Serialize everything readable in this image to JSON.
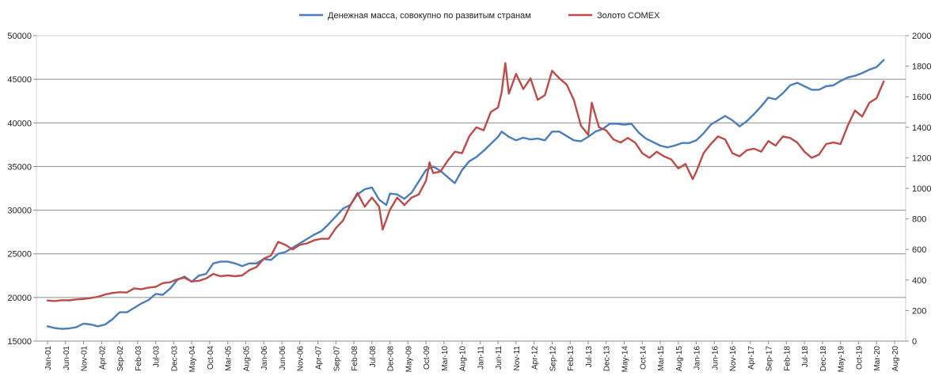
{
  "chart_data": {
    "type": "line",
    "legend_position": "top",
    "grid": true,
    "y_left": {
      "min": 15000,
      "max": 50000,
      "step": 5000,
      "ticks": [
        "15000",
        "20000",
        "25000",
        "30000",
        "35000",
        "40000",
        "45000",
        "50000"
      ]
    },
    "y_right": {
      "min": 0,
      "max": 2000,
      "step": 200,
      "ticks": [
        "0",
        "200",
        "400",
        "600",
        "800",
        "1000",
        "1200",
        "1400",
        "1600",
        "1800",
        "2000"
      ]
    },
    "x_ticks": [
      "Jan-01",
      "Jun-01",
      "Nov-01",
      "Apr-02",
      "Sep-02",
      "Feb-03",
      "Jul-03",
      "Dec-03",
      "May-04",
      "Oct-04",
      "Mar-05",
      "Aug-05",
      "Jan-06",
      "Jun-06",
      "Nov-06",
      "Apr-07",
      "Sep-07",
      "Feb-08",
      "Jul-08",
      "Dec-08",
      "May-09",
      "Oct-09",
      "Mar-10",
      "Aug-10",
      "Jan-11",
      "Jun-11",
      "Nov-11",
      "Apr-12",
      "Sep-12",
      "Feb-13",
      "Jul-13",
      "Dec-13",
      "May-14",
      "Oct-14",
      "Mar-15",
      "Aug-15",
      "Jan-16",
      "Jun-16",
      "Nov-16",
      "Apr-17",
      "Sep-17",
      "Feb-18",
      "Jul-18",
      "Dec-18",
      "May-19",
      "Oct-19",
      "Mar-20",
      "Aug-20"
    ],
    "series": [
      {
        "name": "Денежная  масса, совокупно по развитым странам",
        "axis": "left",
        "color": "#4a7ebb",
        "points": [
          [
            "Jan-01",
            16700
          ],
          [
            "Mar-01",
            16500
          ],
          [
            "May-01",
            16400
          ],
          [
            "Jul-01",
            16450
          ],
          [
            "Sep-01",
            16600
          ],
          [
            "Nov-01",
            17000
          ],
          [
            "Jan-02",
            16900
          ],
          [
            "Mar-02",
            16700
          ],
          [
            "May-02",
            16900
          ],
          [
            "Jul-02",
            17500
          ],
          [
            "Sep-02",
            18300
          ],
          [
            "Nov-02",
            18300
          ],
          [
            "Jan-03",
            18800
          ],
          [
            "Mar-03",
            19300
          ],
          [
            "May-03",
            19700
          ],
          [
            "Jul-03",
            20400
          ],
          [
            "Sep-03",
            20300
          ],
          [
            "Nov-03",
            21000
          ],
          [
            "Jan-04",
            22000
          ],
          [
            "Mar-04",
            22400
          ],
          [
            "May-04",
            21800
          ],
          [
            "Jul-04",
            22500
          ],
          [
            "Sep-04",
            22700
          ],
          [
            "Nov-04",
            23900
          ],
          [
            "Jan-05",
            24100
          ],
          [
            "Mar-05",
            24100
          ],
          [
            "May-05",
            23900
          ],
          [
            "Jul-05",
            23600
          ],
          [
            "Sep-05",
            23900
          ],
          [
            "Nov-05",
            23900
          ],
          [
            "Jan-06",
            24400
          ],
          [
            "Mar-06",
            24300
          ],
          [
            "May-06",
            25000
          ],
          [
            "Jul-06",
            25200
          ],
          [
            "Sep-06",
            25700
          ],
          [
            "Nov-06",
            26200
          ],
          [
            "Jan-07",
            26700
          ],
          [
            "Mar-07",
            27200
          ],
          [
            "May-07",
            27600
          ],
          [
            "Jul-07",
            28400
          ],
          [
            "Sep-07",
            29300
          ],
          [
            "Nov-07",
            30200
          ],
          [
            "Jan-08",
            30600
          ],
          [
            "Mar-08",
            31800
          ],
          [
            "May-08",
            32400
          ],
          [
            "Jul-08",
            32600
          ],
          [
            "Sep-08",
            31200
          ],
          [
            "Nov-08",
            30600
          ],
          [
            "Dec-08",
            31900
          ],
          [
            "Feb-09",
            31800
          ],
          [
            "Apr-09",
            31300
          ],
          [
            "Jun-09",
            32000
          ],
          [
            "Aug-09",
            33300
          ],
          [
            "Oct-09",
            34600
          ],
          [
            "Dec-09",
            35000
          ],
          [
            "Feb-10",
            34500
          ],
          [
            "Apr-10",
            33800
          ],
          [
            "Jun-10",
            33100
          ],
          [
            "Aug-10",
            34600
          ],
          [
            "Oct-10",
            35600
          ],
          [
            "Dec-10",
            36100
          ],
          [
            "Feb-11",
            36800
          ],
          [
            "Apr-11",
            37600
          ],
          [
            "Jun-11",
            38400
          ],
          [
            "Jul-11",
            39000
          ],
          [
            "Sep-11",
            38400
          ],
          [
            "Nov-11",
            38000
          ],
          [
            "Jan-12",
            38300
          ],
          [
            "Mar-12",
            38100
          ],
          [
            "May-12",
            38200
          ],
          [
            "Jul-12",
            38000
          ],
          [
            "Sep-12",
            39000
          ],
          [
            "Nov-12",
            39000
          ],
          [
            "Jan-13",
            38500
          ],
          [
            "Mar-13",
            38000
          ],
          [
            "May-13",
            37900
          ],
          [
            "Jul-13",
            38400
          ],
          [
            "Sep-13",
            39000
          ],
          [
            "Nov-13",
            39300
          ],
          [
            "Jan-14",
            39900
          ],
          [
            "Mar-14",
            39900
          ],
          [
            "May-14",
            39800
          ],
          [
            "Jul-14",
            39900
          ],
          [
            "Sep-14",
            38900
          ],
          [
            "Nov-14",
            38200
          ],
          [
            "Jan-15",
            37800
          ],
          [
            "Mar-15",
            37400
          ],
          [
            "May-15",
            37200
          ],
          [
            "Jul-15",
            37400
          ],
          [
            "Sep-15",
            37700
          ],
          [
            "Nov-15",
            37700
          ],
          [
            "Jan-16",
            38000
          ],
          [
            "Mar-16",
            38800
          ],
          [
            "May-16",
            39800
          ],
          [
            "Jul-16",
            40300
          ],
          [
            "Sep-16",
            40800
          ],
          [
            "Nov-16",
            40300
          ],
          [
            "Jan-17",
            39600
          ],
          [
            "Mar-17",
            40200
          ],
          [
            "May-17",
            41000
          ],
          [
            "Jul-17",
            41900
          ],
          [
            "Sep-17",
            42900
          ],
          [
            "Nov-17",
            42700
          ],
          [
            "Jan-18",
            43400
          ],
          [
            "Mar-18",
            44300
          ],
          [
            "May-18",
            44600
          ],
          [
            "Jul-18",
            44200
          ],
          [
            "Sep-18",
            43800
          ],
          [
            "Nov-18",
            43800
          ],
          [
            "Jan-19",
            44200
          ],
          [
            "Mar-19",
            44300
          ],
          [
            "May-19",
            44800
          ],
          [
            "Jul-19",
            45200
          ],
          [
            "Sep-19",
            45400
          ],
          [
            "Nov-19",
            45700
          ],
          [
            "Jan-20",
            46100
          ],
          [
            "Mar-20",
            46400
          ],
          [
            "May-20",
            47200
          ]
        ]
      },
      {
        "name": "Золото COMEX",
        "axis": "right",
        "color": "#be4b48",
        "points": [
          [
            "Jan-01",
            266
          ],
          [
            "Mar-01",
            262
          ],
          [
            "May-01",
            268
          ],
          [
            "Jul-01",
            267
          ],
          [
            "Sep-01",
            273
          ],
          [
            "Nov-01",
            276
          ],
          [
            "Jan-02",
            282
          ],
          [
            "Mar-02",
            290
          ],
          [
            "May-02",
            305
          ],
          [
            "Jul-02",
            315
          ],
          [
            "Sep-02",
            320
          ],
          [
            "Nov-02",
            318
          ],
          [
            "Jan-03",
            345
          ],
          [
            "Mar-03",
            340
          ],
          [
            "May-03",
            350
          ],
          [
            "Jul-03",
            355
          ],
          [
            "Sep-03",
            380
          ],
          [
            "Nov-03",
            385
          ],
          [
            "Jan-04",
            405
          ],
          [
            "Mar-04",
            415
          ],
          [
            "May-04",
            390
          ],
          [
            "Jul-04",
            395
          ],
          [
            "Sep-04",
            410
          ],
          [
            "Nov-04",
            440
          ],
          [
            "Jan-05",
            425
          ],
          [
            "Mar-05",
            430
          ],
          [
            "May-05",
            425
          ],
          [
            "Jul-05",
            430
          ],
          [
            "Sep-05",
            465
          ],
          [
            "Nov-05",
            485
          ],
          [
            "Jan-06",
            540
          ],
          [
            "Mar-06",
            560
          ],
          [
            "May-06",
            650
          ],
          [
            "Jul-06",
            630
          ],
          [
            "Sep-06",
            600
          ],
          [
            "Nov-06",
            630
          ],
          [
            "Jan-07",
            640
          ],
          [
            "Mar-07",
            660
          ],
          [
            "May-07",
            670
          ],
          [
            "Jul-07",
            670
          ],
          [
            "Sep-07",
            740
          ],
          [
            "Nov-07",
            790
          ],
          [
            "Jan-08",
            890
          ],
          [
            "Mar-08",
            970
          ],
          [
            "May-08",
            880
          ],
          [
            "Jul-08",
            940
          ],
          [
            "Sep-08",
            880
          ],
          [
            "Oct-08",
            730
          ],
          [
            "Dec-08",
            860
          ],
          [
            "Feb-09",
            940
          ],
          [
            "Apr-09",
            890
          ],
          [
            "Jun-09",
            940
          ],
          [
            "Aug-09",
            960
          ],
          [
            "Oct-09",
            1050
          ],
          [
            "Nov-09",
            1170
          ],
          [
            "Dec-09",
            1100
          ],
          [
            "Feb-10",
            1110
          ],
          [
            "Apr-10",
            1180
          ],
          [
            "Jun-10",
            1240
          ],
          [
            "Aug-10",
            1230
          ],
          [
            "Oct-10",
            1340
          ],
          [
            "Dec-10",
            1400
          ],
          [
            "Feb-11",
            1380
          ],
          [
            "Apr-11",
            1500
          ],
          [
            "Jun-11",
            1530
          ],
          [
            "Jul-11",
            1630
          ],
          [
            "Aug-11",
            1820
          ],
          [
            "Sep-11",
            1620
          ],
          [
            "Nov-11",
            1750
          ],
          [
            "Jan-12",
            1650
          ],
          [
            "Mar-12",
            1720
          ],
          [
            "May-12",
            1580
          ],
          [
            "Jul-12",
            1610
          ],
          [
            "Sep-12",
            1770
          ],
          [
            "Nov-12",
            1720
          ],
          [
            "Jan-13",
            1680
          ],
          [
            "Mar-13",
            1580
          ],
          [
            "May-13",
            1410
          ],
          [
            "Jul-13",
            1350
          ],
          [
            "Aug-13",
            1560
          ],
          [
            "Oct-13",
            1400
          ],
          [
            "Dec-13",
            1380
          ],
          [
            "Feb-14",
            1320
          ],
          [
            "Apr-14",
            1300
          ],
          [
            "Jun-14",
            1330
          ],
          [
            "Aug-14",
            1300
          ],
          [
            "Oct-14",
            1230
          ],
          [
            "Dec-14",
            1200
          ],
          [
            "Feb-15",
            1240
          ],
          [
            "Apr-15",
            1210
          ],
          [
            "Jun-15",
            1190
          ],
          [
            "Aug-15",
            1130
          ],
          [
            "Oct-15",
            1160
          ],
          [
            "Dec-15",
            1060
          ],
          [
            "Jan-16",
            1110
          ],
          [
            "Mar-16",
            1230
          ],
          [
            "May-16",
            1290
          ],
          [
            "Jul-16",
            1340
          ],
          [
            "Sep-16",
            1320
          ],
          [
            "Nov-16",
            1230
          ],
          [
            "Jan-17",
            1210
          ],
          [
            "Mar-17",
            1250
          ],
          [
            "May-17",
            1260
          ],
          [
            "Jul-17",
            1240
          ],
          [
            "Sep-17",
            1310
          ],
          [
            "Nov-17",
            1280
          ],
          [
            "Jan-18",
            1340
          ],
          [
            "Mar-18",
            1330
          ],
          [
            "May-18",
            1300
          ],
          [
            "Jul-18",
            1240
          ],
          [
            "Sep-18",
            1200
          ],
          [
            "Nov-18",
            1220
          ],
          [
            "Jan-19",
            1290
          ],
          [
            "Mar-19",
            1300
          ],
          [
            "May-19",
            1290
          ],
          [
            "Jul-19",
            1410
          ],
          [
            "Sep-19",
            1510
          ],
          [
            "Nov-19",
            1470
          ],
          [
            "Jan-20",
            1560
          ],
          [
            "Mar-20",
            1590
          ],
          [
            "May-20",
            1700
          ]
        ]
      }
    ]
  }
}
